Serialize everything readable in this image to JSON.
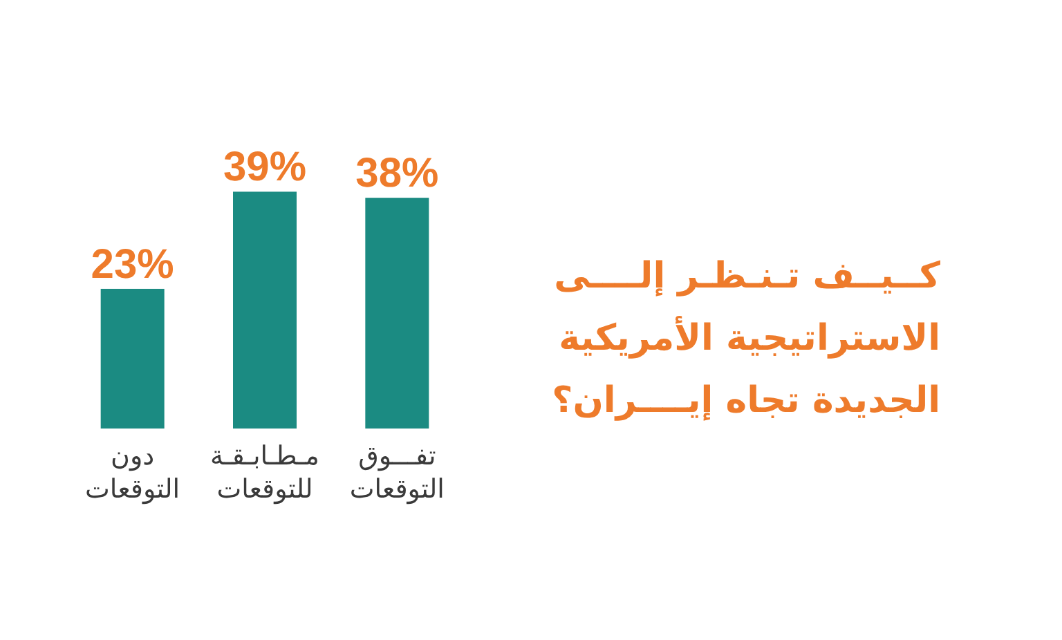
{
  "chart_data": {
    "type": "bar",
    "title": "كــيــف تـنـظـر إلــــى الاستراتيجية الأمريكية الجديدة تجاه إيــــران؟",
    "categories": [
      "دون التوقعات",
      "مـطـابـقـة للتوقعات",
      "تفـــوق التوقعات"
    ],
    "values": [
      23,
      39,
      38
    ],
    "value_labels": [
      "23%",
      "39%",
      "38%"
    ],
    "color": "#1b8b82",
    "tick_labels": "x"
  }
}
